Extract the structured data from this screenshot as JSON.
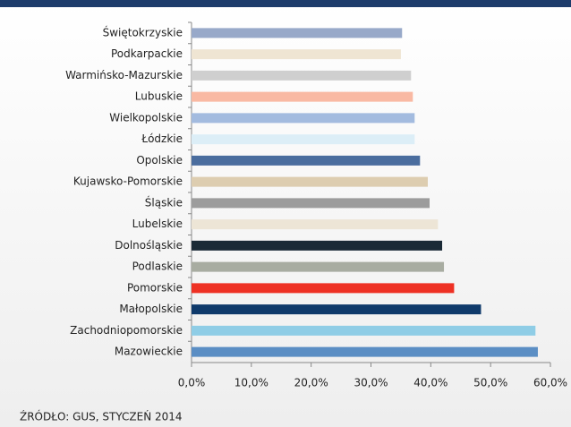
{
  "chart_data": {
    "type": "hbar",
    "categories": [
      "Świętokrzyskie",
      "Podkarpackie",
      "Warmińsko-Mazurskie",
      "Lubuskie",
      "Wielkopolskie",
      "Łódzkie",
      "Opolskie",
      "Kujawsko-Pomorskie",
      "Śląskie",
      "Lubelskie",
      "Dolnośląskie",
      "Podlaskie",
      "Pomorskie",
      "Małopolskie",
      "Zachodniopomorskie",
      "Mazowieckie"
    ],
    "values": [
      35.2,
      35.0,
      36.7,
      37.0,
      37.3,
      37.3,
      38.2,
      39.5,
      39.8,
      41.2,
      41.9,
      42.2,
      43.9,
      48.4,
      57.5,
      57.9
    ],
    "colors": [
      "#98a9c9",
      "#efe5d3",
      "#cfcfcf",
      "#f9b9a3",
      "#a3bbdf",
      "#dceef7",
      "#4a6d9e",
      "#ddcdb0",
      "#9c9c9c",
      "#ede5d6",
      "#1a2a36",
      "#a8aca1",
      "#ee3124",
      "#0f3a6b",
      "#8fcde6",
      "#5b8ec4"
    ],
    "xlim": [
      0,
      60
    ],
    "xticks": [
      {
        "value": 0,
        "label": "0,0%"
      },
      {
        "value": 10,
        "label": "10,0%"
      },
      {
        "value": 20,
        "label": "20,0%"
      },
      {
        "value": 30,
        "label": "30,0%"
      },
      {
        "value": 40,
        "label": "40,0%"
      },
      {
        "value": 50,
        "label": "50,0%"
      },
      {
        "value": 60,
        "label": "60,0%"
      }
    ],
    "source": "ŹRÓDŁO: GUS, STYCZEŃ 2014"
  }
}
